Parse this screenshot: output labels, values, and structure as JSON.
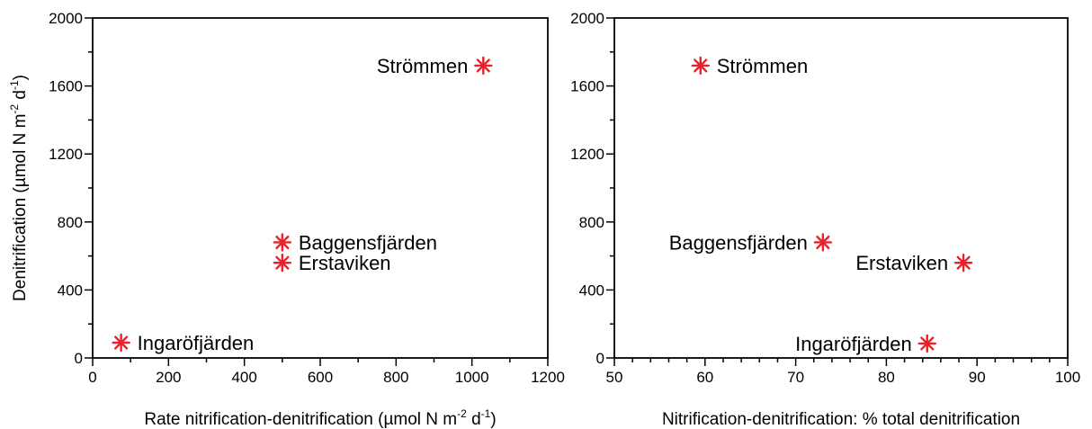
{
  "marker_color": "#e8212b",
  "chart_data": [
    {
      "type": "scatter",
      "xlabel": "Rate nitrification-denitrification (µmol N m-2 d-1)",
      "ylabel": "Denitrification (µmol N m-2 d-1)",
      "xlabel_parts": {
        "pre": "Rate nitrification-denitrification (µmol N m",
        "sup1": "-2",
        "mid": " d",
        "sup2": "-1",
        "post": ")"
      },
      "ylabel_parts": {
        "pre": "Denitrification (µmol N m",
        "sup1": "-2",
        "mid": " d",
        "sup2": "-1",
        "post": ")"
      },
      "xlim": [
        0,
        1200
      ],
      "ylim": [
        0,
        2000
      ],
      "xticks": [
        0,
        200,
        400,
        600,
        800,
        1000,
        1200
      ],
      "yticks": [
        0,
        400,
        800,
        1200,
        1600,
        2000
      ],
      "x_minor": 100,
      "y_minor": 200,
      "grid": false,
      "points": [
        {
          "label": "Strömmen",
          "x": 1030,
          "y": 1720,
          "label_side": "left"
        },
        {
          "label": "Baggensfjärden",
          "x": 500,
          "y": 680,
          "label_side": "right"
        },
        {
          "label": "Erstaviken",
          "x": 500,
          "y": 560,
          "label_side": "right"
        },
        {
          "label": "Ingaröfjärden",
          "x": 75,
          "y": 90,
          "label_side": "right"
        }
      ]
    },
    {
      "type": "scatter",
      "xlabel": "Nitrification-denitrification: % total denitrification",
      "ylabel": "",
      "xlim": [
        50,
        100
      ],
      "ylim": [
        0,
        2000
      ],
      "xticks": [
        50,
        60,
        70,
        80,
        90,
        100
      ],
      "yticks": [
        0,
        400,
        800,
        1200,
        1600,
        2000
      ],
      "x_minor": 2,
      "y_minor": 200,
      "grid": false,
      "points": [
        {
          "label": "Strömmen",
          "x": 59.5,
          "y": 1720,
          "label_side": "right"
        },
        {
          "label": "Baggensfjärden",
          "x": 73,
          "y": 680,
          "label_side": "left"
        },
        {
          "label": "Erstaviken",
          "x": 88.5,
          "y": 560,
          "label_side": "left"
        },
        {
          "label": "Ingaröfjärden",
          "x": 84.5,
          "y": 85,
          "label_side": "left"
        }
      ]
    }
  ]
}
